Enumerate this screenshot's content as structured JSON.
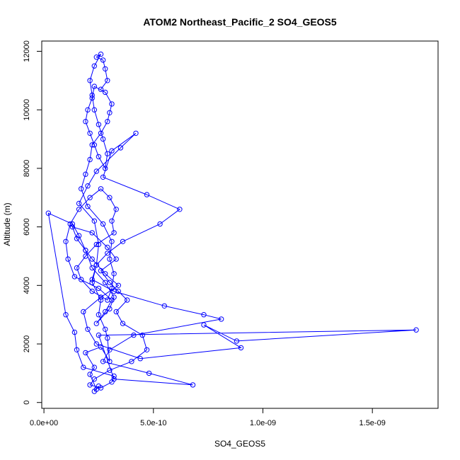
{
  "chart_data": {
    "type": "line",
    "marker": "open-circle",
    "title": "ATOM2 Northeast_Pacific_2 SO4_GEOS5",
    "xlabel": "SO4_GEOS5",
    "ylabel": "Altitude (m)",
    "xlim": [
      -1e-11,
      1.8e-09
    ],
    "ylim": [
      -200,
      12350
    ],
    "x_ticks": [
      0,
      5e-10,
      1e-09,
      1.5e-09
    ],
    "x_tick_labels": [
      "0.0e+00",
      "5.0e-10",
      "1.0e-09",
      "1.5e-09"
    ],
    "y_ticks": [
      0,
      2000,
      4000,
      6000,
      8000,
      10000,
      12000
    ],
    "y_tick_labels": [
      "0",
      "2000",
      "4000",
      "6000",
      "8000",
      "10000",
      "12000"
    ],
    "colors": {
      "series": "#0000ff",
      "axis": "#000000"
    },
    "series": [
      {
        "x": [
          2.3e-10,
          2.5e-10,
          2.4e-10,
          2.1e-10,
          2.3e-10,
          1.9e-10,
          2.6e-10,
          3e-10,
          2.9e-10,
          2.8e-10,
          2.5e-10,
          2.6e-10,
          2.2e-10,
          2.4e-10,
          2.5e-10,
          2.3e-10,
          1.6e-10,
          2e-10,
          2.4e-10,
          3.5e-10,
          4.2e-10,
          3.1e-10,
          2.7e-10,
          4.7e-10,
          6.2e-10,
          5.3e-10,
          3.6e-10,
          2.9e-10,
          2.4e-10,
          2.2e-10,
          3.2e-10,
          5.5e-10,
          7.3e-10,
          8.1e-10,
          4.1e-10,
          3e-10,
          2.7e-10,
          4.8e-10,
          6.8e-10,
          3.2e-10,
          2.5e-10,
          1.7e-09,
          8.8e-10,
          7.3e-10,
          9e-10,
          4.4e-10,
          2.4e-10,
          2e-10,
          1.8e-10,
          2.6e-10,
          3.4e-10,
          2.8e-10,
          2.2e-10,
          1.9e-10,
          1.5e-10,
          1.3e-10,
          2.2e-10,
          2.9e-10,
          3.3e-10,
          2.6e-10,
          3e-10,
          3.4e-10,
          3.8e-10,
          3.3e-10,
          3.6e-10,
          4.5e-10,
          4.7e-10,
          4e-10,
          3e-10,
          2.3e-10,
          2.1e-10,
          2.6e-10,
          3.1e-10,
          3.2e-10,
          1.8e-10,
          1.5e-10,
          1.4e-10,
          1e-10,
          2e-11,
          1.3e-10,
          1.6e-10,
          1.9e-10,
          2.2e-10,
          2.8e-10,
          3.2e-10,
          3e-10,
          2.4e-10,
          2.8e-10,
          3.1e-10,
          2.5e-10,
          1.4e-10,
          1.1e-10,
          1e-10,
          1.2e-10,
          1.6e-10,
          2.1e-10,
          2.6e-10,
          3e-10,
          3.3e-10,
          3.1e-10,
          3.2e-10,
          2.4e-10,
          1.9e-10,
          1.5e-10,
          1.7e-10,
          2.2e-10,
          2.9e-10,
          3.1e-10,
          3.2e-10,
          3e-10,
          3.1e-10,
          2.7e-10,
          2e-10,
          1.7e-10,
          1.9e-10,
          2.1e-10,
          2.2e-10,
          2.6e-10,
          2.9e-10,
          3e-10,
          3.1e-10,
          2.8e-10,
          2.3e-10,
          2.2e-10,
          2e-10,
          1.9e-10,
          2.1e-10,
          2.3e-10,
          2.5e-10,
          2.8e-10,
          2.9e-10,
          2.7e-10,
          2.5e-10,
          2.3e-10,
          2.2e-10,
          2.1e-10,
          2.3e-10,
          2.6e-10,
          2.4e-10,
          2.7e-10,
          2.8e-10,
          2.9e-10,
          2.6e-10
        ],
        "y": [
          380,
          560,
          450,
          960,
          1200,
          1700,
          1900,
          1400,
          2200,
          2500,
          3000,
          3500,
          4100,
          4700,
          5400,
          6200,
          6800,
          7400,
          7900,
          8700,
          9200,
          8600,
          7700,
          7100,
          6600,
          6100,
          5500,
          5100,
          4700,
          4200,
          3800,
          3300,
          3000,
          2850,
          2300,
          1800,
          1400,
          1000,
          600,
          800,
          2300,
          2480,
          2100,
          2650,
          1870,
          1500,
          2000,
          2500,
          3100,
          3600,
          4000,
          4400,
          4900,
          5200,
          5600,
          6000,
          5800,
          5300,
          4900,
          4500,
          4100,
          3800,
          3500,
          3100,
          2700,
          2300,
          1800,
          1400,
          1100,
          800,
          600,
          500,
          700,
          900,
          1200,
          1800,
          2400,
          3000,
          6470,
          6100,
          5700,
          5200,
          4600,
          4100,
          3600,
          3200,
          2700,
          3100,
          3500,
          3900,
          4300,
          4900,
          5500,
          6100,
          6600,
          7000,
          7300,
          7000,
          6600,
          6200,
          5800,
          5400,
          5000,
          4600,
          4200,
          3800,
          3500,
          3900,
          4400,
          4900,
          5500,
          6100,
          6700,
          7300,
          7800,
          8300,
          8800,
          9200,
          9600,
          9900,
          10200,
          10600,
          10800,
          10400,
          10000,
          9600,
          9200,
          8800,
          8400,
          8000,
          8500,
          9000,
          9500,
          10000,
          10500,
          11000,
          11500,
          11900,
          11800,
          11700,
          11400,
          11000,
          10700
        ]
      }
    ]
  }
}
